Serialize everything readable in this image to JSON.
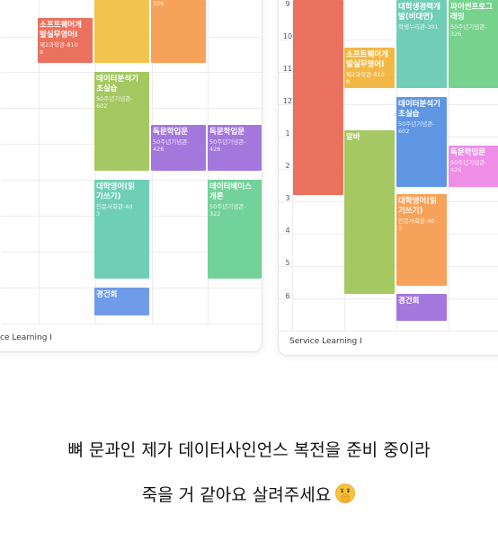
{
  "left_timetable": {
    "footer": "ce Learning I",
    "blocks": [
      {
        "title": "",
        "sub": "",
        "color": "#f2c34f"
      },
      {
        "title": "",
        "sub": "326",
        "color": "#f6a25a"
      },
      {
        "title": "소프트웨어개\n발실무영어I",
        "sub": "제2과학관-810\n8",
        "color": "#e9715e"
      },
      {
        "title": "데이터분석기\n초실습",
        "sub": "50주년기념관-\n602",
        "color": "#a5c862"
      },
      {
        "title": "독문학입문",
        "sub": "50주년기념관-\n426",
        "color": "#a477dd"
      },
      {
        "title": "독문학입문",
        "sub": "50주년기념관-\n426",
        "color": "#a477dd"
      },
      {
        "title": "대학영어(읽\n기쓰기)",
        "sub": "인문사회관-40\n3",
        "color": "#6fcfb6"
      },
      {
        "title": "데이터베이스\n개론",
        "sub": "50주년기념관-\n322",
        "color": "#73d29a"
      },
      {
        "title": "경건회",
        "sub": "",
        "color": "#6f9be8"
      }
    ]
  },
  "right_timetable": {
    "footer": "Service Learning I",
    "hours": [
      "9",
      "10",
      "11",
      "12",
      "1",
      "2",
      "3",
      "4",
      "5",
      "6"
    ],
    "blocks": [
      {
        "title": "",
        "sub": "",
        "color": "#e9715e"
      },
      {
        "title": "대학생경력개\n발(비대면)",
        "sub": "학생누리관-301",
        "color": "#72cdb8"
      },
      {
        "title": "파이썬프로그\n래밍",
        "sub": "50주년기념관-\n326",
        "color": "#77d28e"
      },
      {
        "title": "소프트웨어개\n발실무영어I",
        "sub": "제2과학관-810\n8",
        "color": "#f2b846"
      },
      {
        "title": "데이터분석기\n초실습",
        "sub": "50주년기념관-\n602",
        "color": "#5f96e4"
      },
      {
        "title": "알바",
        "sub": "",
        "color": "#a5c862"
      },
      {
        "title": "독문학입문",
        "sub": "50주년기념관-\n426",
        "color": "#ee8ee6"
      },
      {
        "title": "대학영어(읽\n기쓰기)",
        "sub": "인문사회관-40\n3",
        "color": "#f6a25a"
      },
      {
        "title": "경건회",
        "sub": "",
        "color": "#a477dd"
      }
    ]
  },
  "caption": {
    "line1": "뼈 문과인 제가 데이터사인언스 복전을 준비 중이라",
    "line2": "죽을 거 같아요 살려주세요",
    "emoji": "shushing-face-emoji"
  }
}
